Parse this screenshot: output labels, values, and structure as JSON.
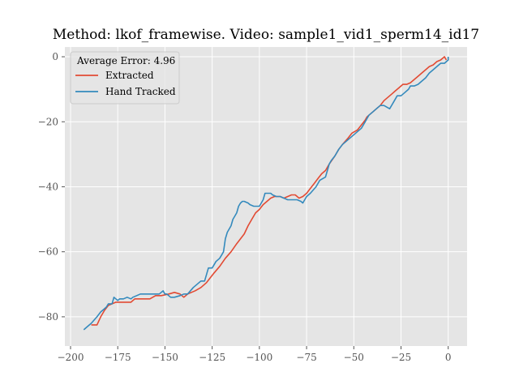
{
  "chart_data": {
    "type": "line",
    "title": "Method: lkof_framewise. Video: sample1_vid1_sperm14_id17",
    "xlabel": "",
    "ylabel": "",
    "xlim": [
      -203,
      10
    ],
    "ylim": [
      -89,
      3
    ],
    "xticks": [
      -200,
      -175,
      -150,
      -125,
      -100,
      -75,
      -50,
      -25,
      0
    ],
    "xtick_labels": [
      "−200",
      "−175",
      "−150",
      "−125",
      "−100",
      "−75",
      "−50",
      "−25",
      "0"
    ],
    "yticks": [
      0,
      -20,
      -40,
      -60,
      -80
    ],
    "ytick_labels": [
      "0",
      "−20",
      "−40",
      "−60",
      "−80"
    ],
    "grid": true,
    "background": "#e5e5e5",
    "legend": {
      "title": "Average Error: 4.96",
      "placement": "top-left"
    },
    "series": [
      {
        "name": "Extracted",
        "color": "#e24a33",
        "x": [
          -189,
          -186,
          -184,
          -182,
          -180,
          -178,
          -176,
          -172,
          -168,
          -166,
          -163,
          -158,
          -155,
          -152,
          -148,
          -145,
          -142,
          -140,
          -138,
          -136,
          -134,
          -131,
          -128,
          -126,
          -124,
          -121,
          -118,
          -115,
          -112,
          -110,
          -108,
          -106,
          -104,
          -102,
          -100,
          -98,
          -96,
          -94,
          -92,
          -89,
          -87,
          -85,
          -83,
          -81,
          -79,
          -77,
          -75,
          -73,
          -71,
          -69,
          -67,
          -65,
          -63,
          -60,
          -58,
          -56,
          -53,
          -51,
          -48,
          -46,
          -44,
          -43,
          -42,
          -40,
          -38,
          -36,
          -34,
          -32,
          -30,
          -28,
          -26,
          -24,
          -22,
          -20,
          -18,
          -16,
          -14,
          -12,
          -10,
          -8,
          -6,
          -4,
          -2,
          -1
        ],
        "y": [
          -82.5,
          -82.5,
          -80,
          -78,
          -76.5,
          -76,
          -75.5,
          -75.5,
          -75.5,
          -74.5,
          -74.5,
          -74.5,
          -73.5,
          -73.5,
          -73,
          -72.5,
          -73,
          -74,
          -73,
          -72.5,
          -72,
          -71,
          -69.5,
          -68,
          -66.5,
          -64.5,
          -62,
          -60,
          -57.5,
          -56,
          -54.5,
          -52,
          -50,
          -48,
          -47,
          -45.5,
          -44.5,
          -43.5,
          -43,
          -43,
          -43.5,
          -43,
          -42.5,
          -42.5,
          -43.5,
          -43,
          -42,
          -40.5,
          -39,
          -37.5,
          -36,
          -35,
          -33,
          -30.5,
          -28.5,
          -27,
          -25,
          -23.5,
          -22.5,
          -21,
          -19.5,
          -18.5,
          -18,
          -17,
          -16,
          -15,
          -13.5,
          -12.5,
          -11.5,
          -10.5,
          -9.5,
          -8.5,
          -8.5,
          -8,
          -7,
          -6,
          -5,
          -4,
          -3,
          -2.5,
          -1.5,
          -1,
          0,
          -1
        ]
      },
      {
        "name": "Hand Tracked",
        "color": "#348abd",
        "x": [
          -193,
          -191,
          -189,
          -186,
          -184,
          -182,
          -181,
          -180,
          -178,
          -177,
          -175,
          -174,
          -172,
          -170,
          -168,
          -167,
          -165,
          -163,
          -160,
          -157,
          -153,
          -151,
          -150,
          -149,
          -147,
          -145,
          -142,
          -140,
          -138,
          -135,
          -133,
          -131,
          -129,
          -127,
          -126,
          -125,
          -124,
          -123,
          -121,
          -120,
          -119,
          -118,
          -117,
          -116,
          -115,
          -114,
          -113,
          -112,
          -111,
          -110,
          -109,
          -108,
          -106,
          -105,
          -103,
          -101,
          -100,
          -99,
          -98,
          -97,
          -96,
          -94,
          -93,
          -91,
          -89,
          -87,
          -85,
          -83,
          -80,
          -78,
          -77,
          -75,
          -73,
          -70,
          -68,
          -65,
          -63,
          -62,
          -60,
          -58,
          -56,
          -54,
          -52,
          -50,
          -48,
          -46,
          -44,
          -43,
          -42,
          -40,
          -38,
          -36,
          -34,
          -31,
          -29,
          -27,
          -26,
          -25,
          -23,
          -21,
          -20,
          -18,
          -16,
          -14,
          -12,
          -10,
          -8,
          -6,
          -4,
          -2,
          0,
          0
        ],
        "y": [
          -84,
          -83,
          -82,
          -80,
          -78.5,
          -77.5,
          -77,
          -76,
          -76,
          -74,
          -75,
          -74.5,
          -74.5,
          -74,
          -74.5,
          -74,
          -73.5,
          -73,
          -73,
          -73,
          -73,
          -72,
          -73,
          -73,
          -74,
          -74,
          -73.5,
          -73,
          -73,
          -71,
          -70,
          -69,
          -69,
          -65,
          -65,
          -65,
          -64,
          -63,
          -62,
          -61,
          -60,
          -56,
          -54,
          -53,
          -52,
          -50,
          -49,
          -48,
          -46,
          -45,
          -44.5,
          -44.5,
          -45,
          -45.5,
          -46,
          -46,
          -46,
          -45,
          -44,
          -42,
          -42,
          -42,
          -42.5,
          -43,
          -43,
          -43.5,
          -44,
          -44,
          -44,
          -44.5,
          -45,
          -43,
          -42,
          -40,
          -38,
          -37,
          -33,
          -32,
          -30.5,
          -28.5,
          -27,
          -26,
          -25,
          -24,
          -23,
          -22,
          -20,
          -19,
          -18,
          -17,
          -16,
          -15,
          -15,
          -16,
          -14,
          -12,
          -12,
          -12,
          -11,
          -10,
          -9,
          -9,
          -8.5,
          -7.5,
          -6.5,
          -5,
          -4,
          -3,
          -2,
          -2,
          -1,
          0
        ]
      }
    ]
  }
}
